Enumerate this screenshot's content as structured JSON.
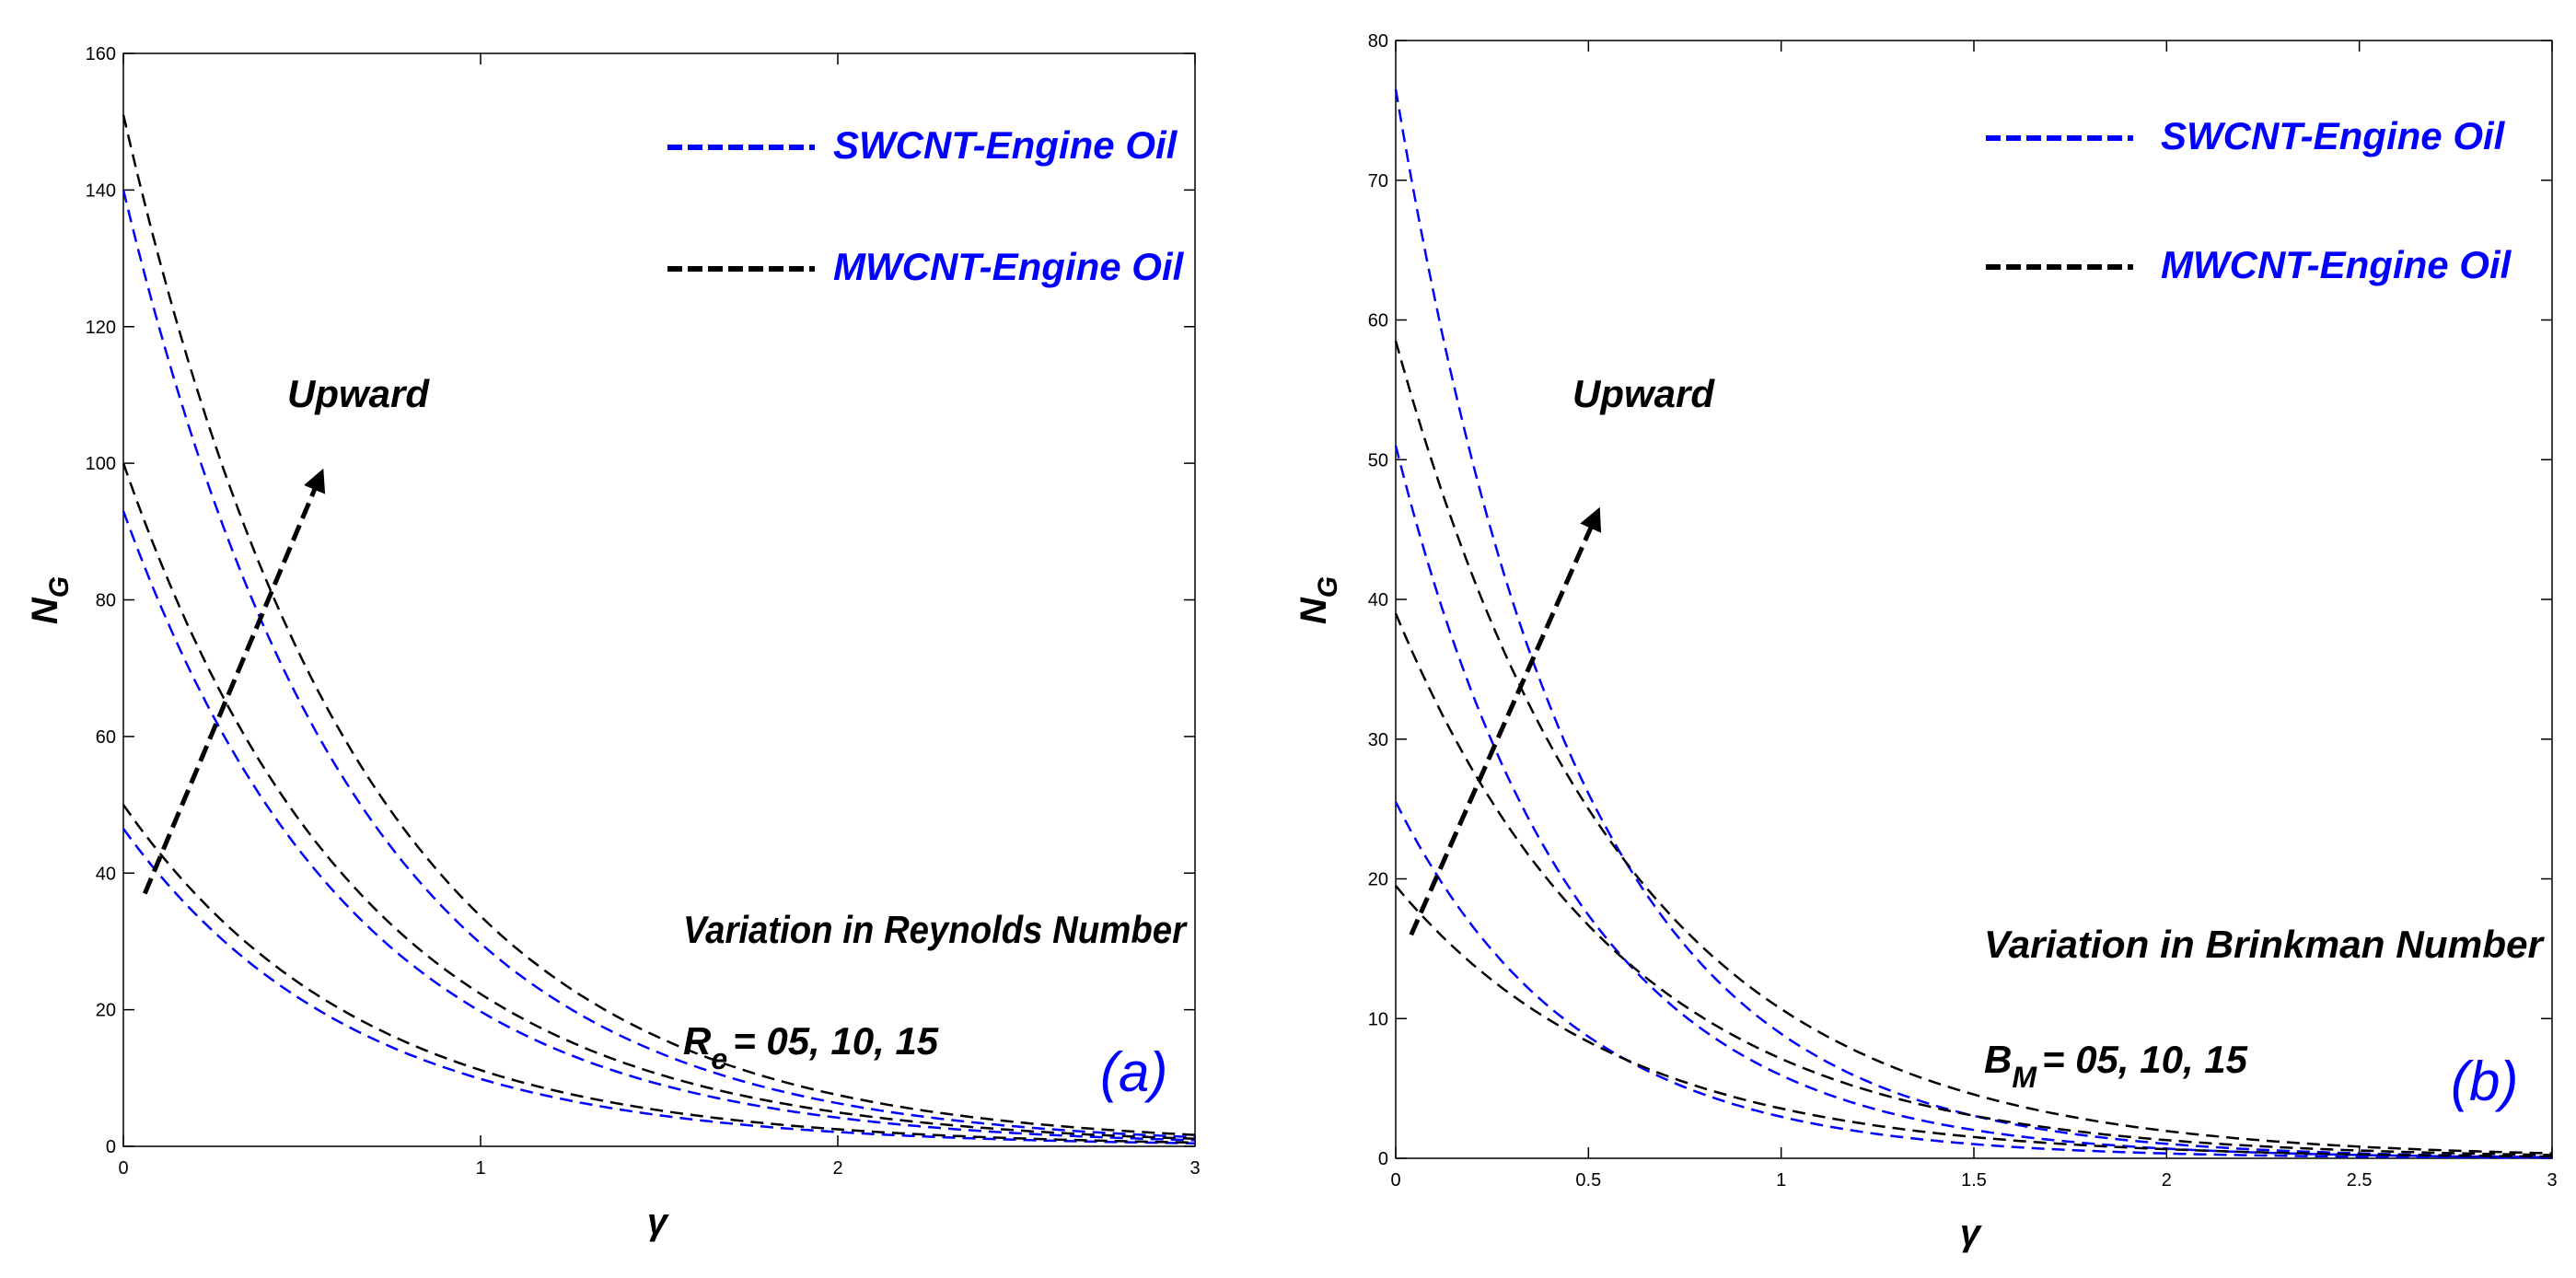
{
  "colors": {
    "swcnt": "#0000ff",
    "mwcnt": "#000000",
    "panel_label": "#0000ff"
  },
  "chart_data": [
    {
      "type": "line",
      "panel_label": "(a)",
      "xlabel": "γ",
      "ylabel_main": "N",
      "ylabel_sub": "G",
      "xlim": [
        0,
        3
      ],
      "ylim": [
        0,
        160
      ],
      "xticks": [
        0,
        1,
        2,
        3
      ],
      "xtick_labels": [
        "0",
        "1",
        "2",
        "3"
      ],
      "yticks": [
        0,
        20,
        40,
        60,
        80,
        100,
        120,
        140,
        160
      ],
      "ytick_labels": [
        "0",
        "20",
        "40",
        "60",
        "80",
        "100",
        "120",
        "140",
        "160"
      ],
      "legend": [
        {
          "label": "SWCNT-Engine Oil",
          "color_key": "swcnt"
        },
        {
          "label": "MWCNT-Engine Oil",
          "color_key": "mwcnt"
        }
      ],
      "annotation_upward": "Upward",
      "annotation_variation": "Variation in Reynolds Number",
      "param_symbol": "R",
      "param_sub": "e",
      "param_values": "= 05, 10, 15",
      "arrow": {
        "from": [
          0.06,
          37
        ],
        "to": [
          0.55,
          98
        ]
      },
      "series": [
        {
          "name": "SWCNT-Engine Oil, Re=05",
          "color_key": "swcnt",
          "a": 46.5,
          "k": 1.55
        },
        {
          "name": "SWCNT-Engine Oil, Re=10",
          "color_key": "swcnt",
          "a": 93,
          "k": 1.55
        },
        {
          "name": "SWCNT-Engine Oil, Re=15",
          "color_key": "swcnt",
          "a": 140,
          "k": 1.55
        },
        {
          "name": "MWCNT-Engine Oil, Re=05",
          "color_key": "mwcnt",
          "a": 50,
          "k": 1.5
        },
        {
          "name": "MWCNT-Engine Oil, Re=10",
          "color_key": "mwcnt",
          "a": 100,
          "k": 1.5
        },
        {
          "name": "MWCNT-Engine Oil, Re=15",
          "color_key": "mwcnt",
          "a": 151,
          "k": 1.5
        }
      ]
    },
    {
      "type": "line",
      "panel_label": "(b)",
      "xlabel": "γ",
      "ylabel_main": "N",
      "ylabel_sub": "G",
      "xlim": [
        0,
        3
      ],
      "ylim": [
        0,
        80
      ],
      "xticks": [
        0,
        0.5,
        1,
        1.5,
        2,
        2.5,
        3
      ],
      "xtick_labels": [
        "0",
        "0.5",
        "1",
        "1.5",
        "2",
        "2.5",
        "3"
      ],
      "yticks": [
        0,
        10,
        20,
        30,
        40,
        50,
        60,
        70,
        80
      ],
      "ytick_labels": [
        "0",
        "10",
        "20",
        "30",
        "40",
        "50",
        "60",
        "70",
        "80"
      ],
      "legend": [
        {
          "label": "SWCNT-Engine Oil",
          "color_key": "swcnt"
        },
        {
          "label": "MWCNT-Engine Oil",
          "color_key": "mwcnt"
        }
      ],
      "annotation_upward": "Upward",
      "annotation_variation": "Variation in Brinkman Number",
      "param_symbol": "B",
      "param_sub": "M",
      "param_values": "= 05, 10, 15",
      "arrow": {
        "from": [
          0.04,
          16
        ],
        "to": [
          0.52,
          46
        ]
      },
      "series": [
        {
          "name": "SWCNT-Engine Oil, Br=05",
          "color_key": "swcnt",
          "a": 25.5,
          "k": 2.15
        },
        {
          "name": "SWCNT-Engine Oil, Br=10",
          "color_key": "swcnt",
          "a": 51,
          "k": 2.15
        },
        {
          "name": "SWCNT-Engine Oil, Br=15",
          "color_key": "swcnt",
          "a": 76.5,
          "k": 2.15
        },
        {
          "name": "MWCNT-Engine Oil, Br=05",
          "color_key": "mwcnt",
          "a": 19.5,
          "k": 1.7
        },
        {
          "name": "MWCNT-Engine Oil, Br=10",
          "color_key": "mwcnt",
          "a": 39,
          "k": 1.7
        },
        {
          "name": "MWCNT-Engine Oil, Br=15",
          "color_key": "mwcnt",
          "a": 58.5,
          "k": 1.7
        }
      ]
    }
  ]
}
